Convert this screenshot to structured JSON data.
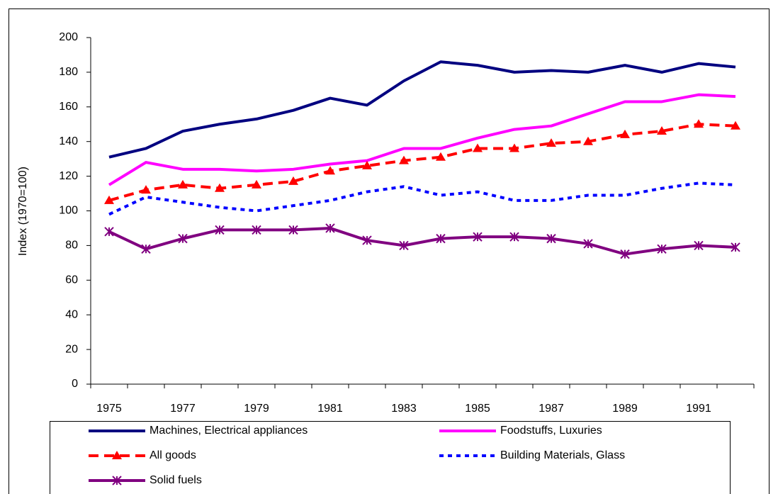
{
  "chart_data": {
    "type": "line",
    "ylabel": "Index (1970=100)",
    "categories": [
      "1975",
      null,
      "1977",
      null,
      "1979",
      null,
      "1981",
      null,
      "1983",
      null,
      "1985",
      null,
      "1987",
      null,
      "1989",
      null,
      "1991",
      null
    ],
    "ylim": [
      0,
      200
    ],
    "yticks": [
      0,
      20,
      40,
      60,
      80,
      100,
      120,
      140,
      160,
      180,
      200
    ],
    "grid": false,
    "legend": "bottom",
    "series": [
      {
        "name": "Machines, Electrical appliances",
        "color": "#000080",
        "dash": "solid",
        "marker": "none",
        "values": [
          131,
          136,
          146,
          150,
          153,
          158,
          165,
          161,
          175,
          186,
          184,
          180,
          181,
          180,
          184,
          180,
          185,
          183
        ]
      },
      {
        "name": "Foodstuffs, Luxuries",
        "color": "#ff00ff",
        "dash": "solid",
        "marker": "none",
        "values": [
          115,
          128,
          124,
          124,
          123,
          124,
          127,
          129,
          136,
          136,
          142,
          147,
          149,
          156,
          163,
          163,
          167,
          166
        ]
      },
      {
        "name": "All goods",
        "color": "#ff0000",
        "dash": "dashed",
        "marker": "triangle",
        "values": [
          106,
          112,
          115,
          113,
          115,
          117,
          123,
          126,
          129,
          131,
          136,
          136,
          139,
          140,
          144,
          146,
          150,
          149
        ]
      },
      {
        "name": "Building Materials, Glass",
        "color": "#0000ff",
        "dash": "dotted",
        "marker": "none",
        "values": [
          98,
          108,
          105,
          102,
          100,
          103,
          106,
          111,
          114,
          109,
          111,
          106,
          106,
          109,
          109,
          113,
          116,
          115
        ]
      },
      {
        "name": "Solid fuels",
        "color": "#800080",
        "dash": "solid",
        "marker": "asterisk",
        "values": [
          88,
          78,
          84,
          89,
          89,
          89,
          90,
          83,
          80,
          84,
          85,
          85,
          84,
          81,
          75,
          78,
          80,
          79
        ]
      }
    ]
  }
}
